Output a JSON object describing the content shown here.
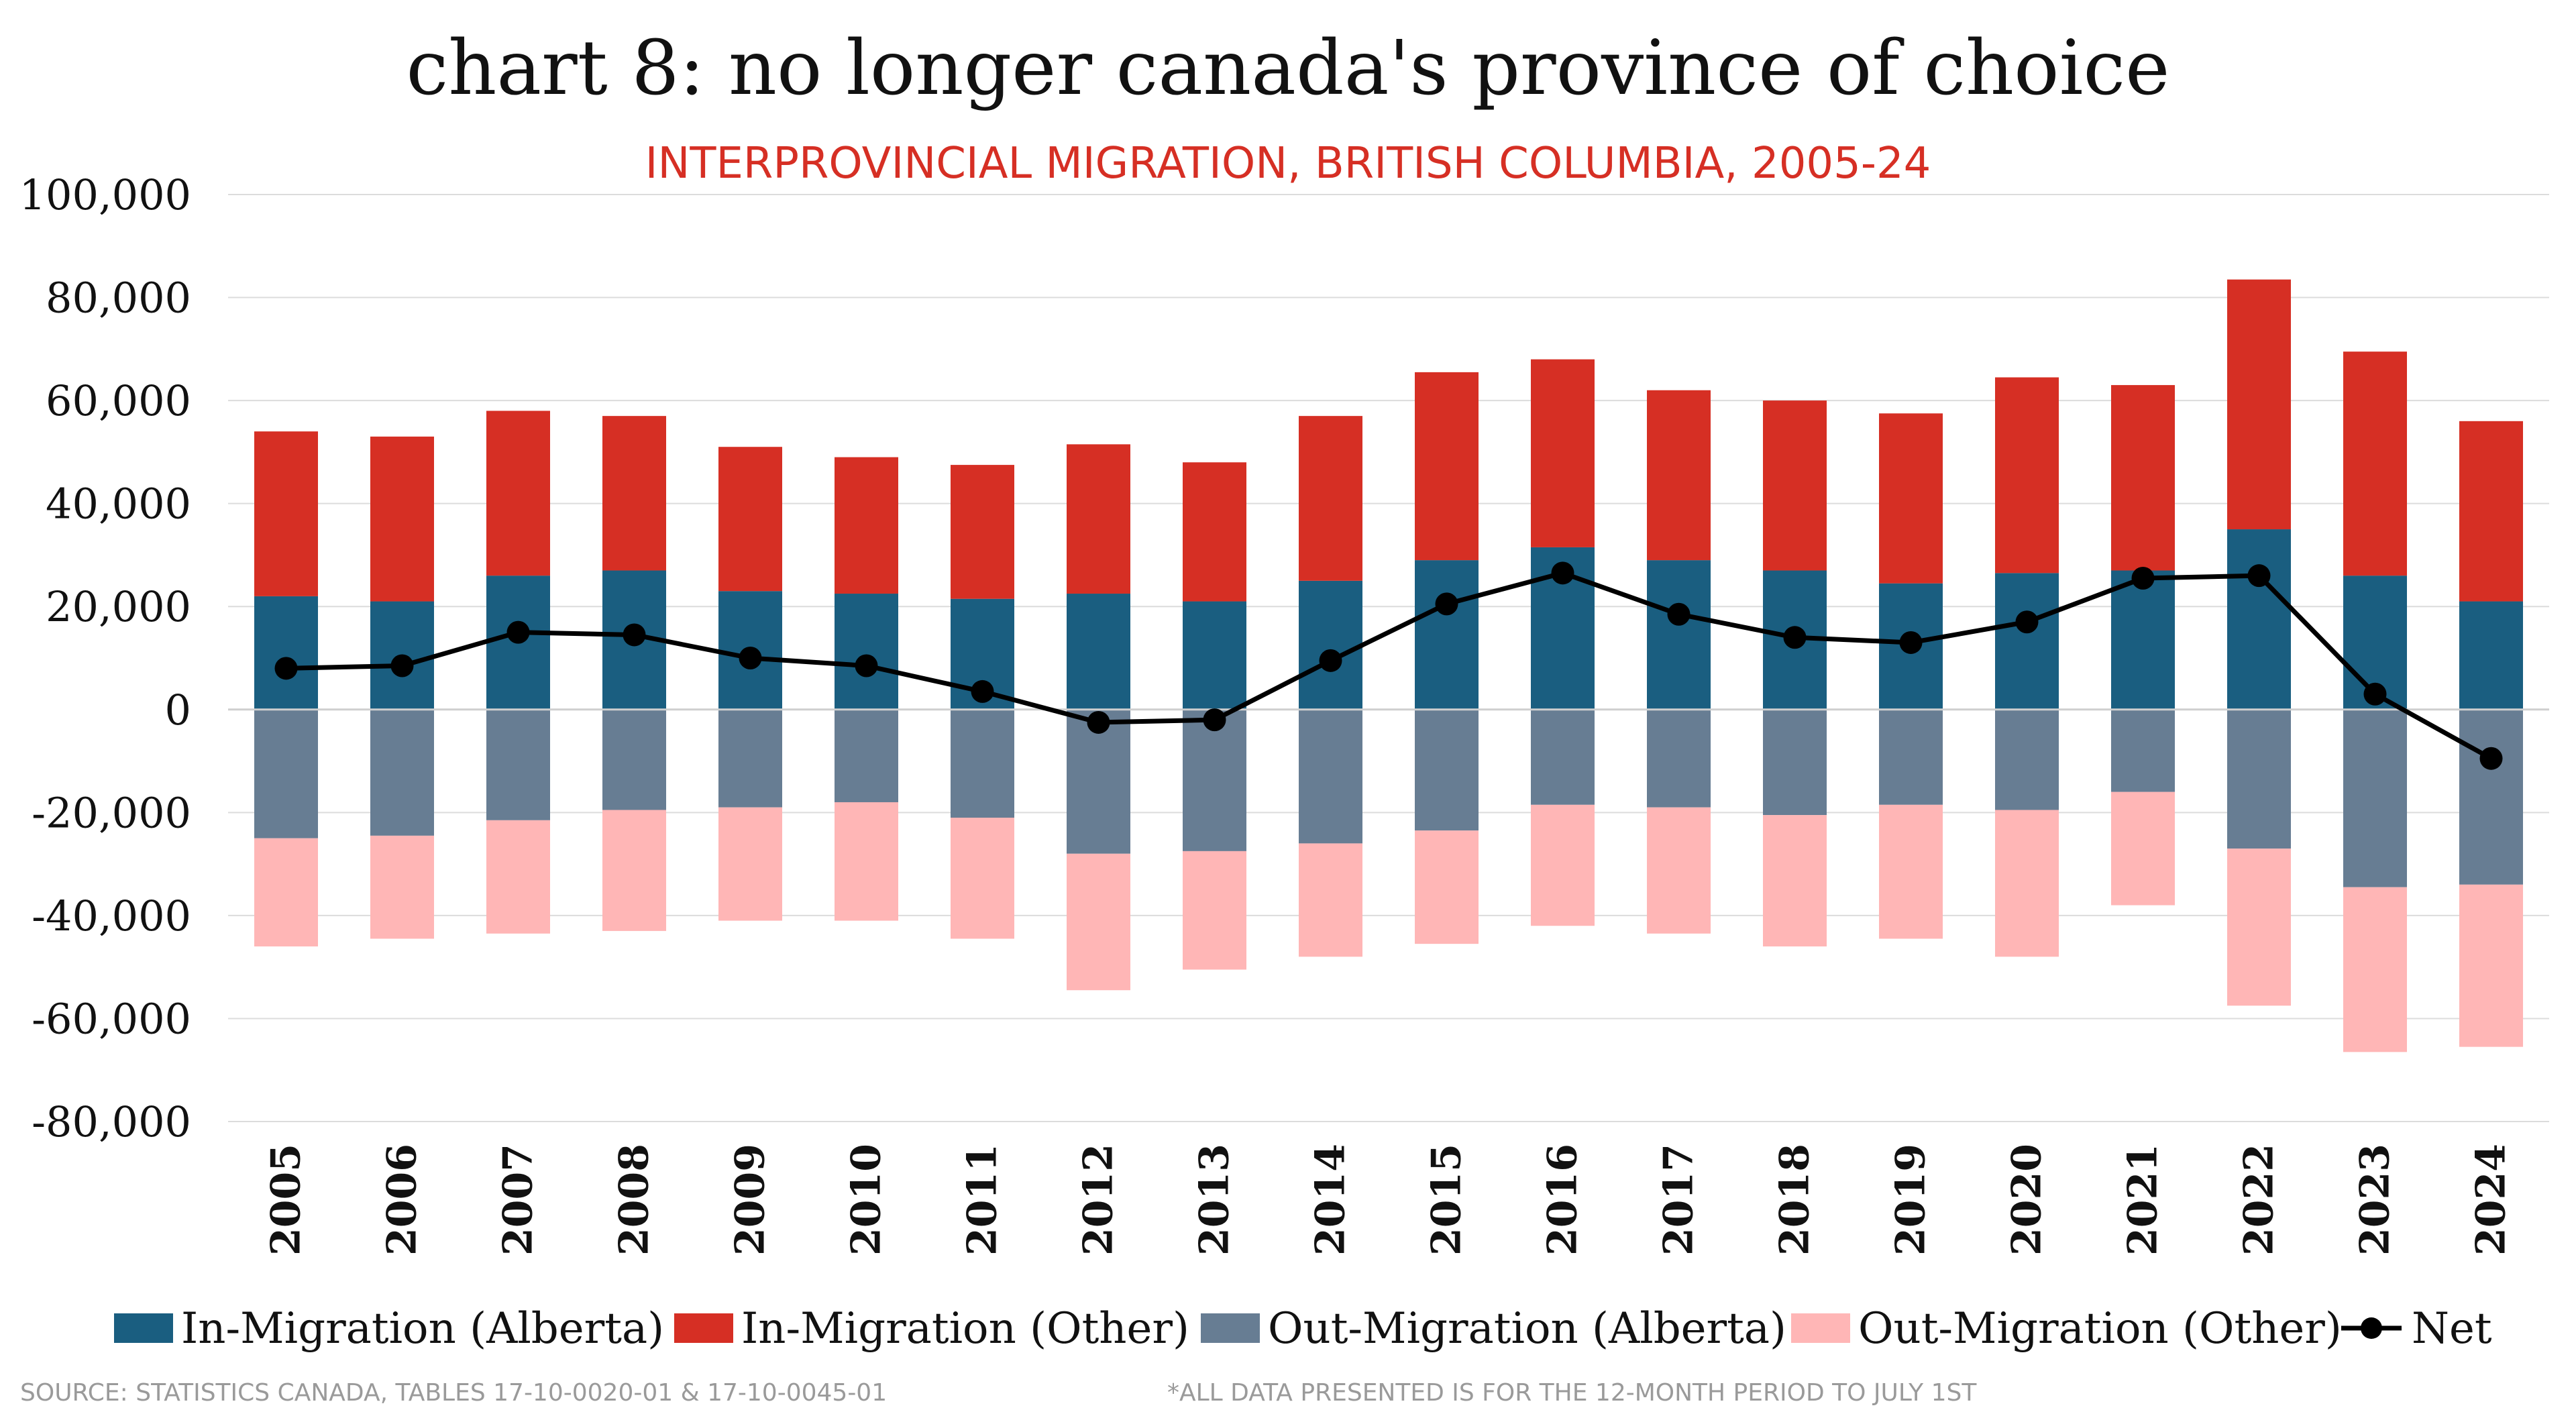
{
  "chart_data": {
    "type": "bar",
    "title": "chart 8: no longer canada's province of choice",
    "subtitle": "INTERPROVINCIAL MIGRATION, BRITISH COLUMBIA, 2005-24",
    "xlabel": "",
    "ylabel": "",
    "ylim": [
      -80000,
      100000
    ],
    "yticks": [
      "100,000",
      "80,000",
      "60,000",
      "40,000",
      "20,000",
      "0",
      "-20,000",
      "-40,000",
      "-60,000",
      "-80,000"
    ],
    "ytick_values": [
      100000,
      80000,
      60000,
      40000,
      20000,
      0,
      -20000,
      -40000,
      -60000,
      -80000
    ],
    "grid": true,
    "legend_position": "bottom",
    "categories": [
      "2005",
      "2006",
      "2007",
      "2008",
      "2009",
      "2010",
      "2011",
      "2012",
      "2013",
      "2014",
      "2015",
      "2016",
      "2017",
      "2018",
      "2019",
      "2020",
      "2021",
      "2022",
      "2023",
      "2024"
    ],
    "series": [
      {
        "name": "In-Migration (Alberta)",
        "type": "bar",
        "stack": "in",
        "color": "#1a5e80",
        "values": [
          22000,
          21000,
          26000,
          27000,
          23000,
          22500,
          21500,
          22500,
          21000,
          25000,
          29000,
          31500,
          29000,
          27000,
          24500,
          26500,
          27000,
          35000,
          26000,
          21000
        ]
      },
      {
        "name": "In-Migration (Other)",
        "type": "bar",
        "stack": "in",
        "color": "#d62f24",
        "values": [
          32000,
          32000,
          32000,
          30000,
          28000,
          26500,
          26000,
          29000,
          27000,
          32000,
          36500,
          36500,
          33000,
          33000,
          33000,
          38000,
          36000,
          48500,
          43500,
          35000
        ]
      },
      {
        "name": "Out-Migration (Alberta)",
        "type": "bar",
        "stack": "out",
        "color": "#677d93",
        "values": [
          -25000,
          -24500,
          -21500,
          -19500,
          -19000,
          -18000,
          -21000,
          -28000,
          -27500,
          -26000,
          -23500,
          -18500,
          -19000,
          -20500,
          -18500,
          -19500,
          -16000,
          -27000,
          -34500,
          -34000
        ]
      },
      {
        "name": "Out-Migration (Other)",
        "type": "bar",
        "stack": "out",
        "color": "#ffb6b6",
        "values": [
          -21000,
          -20000,
          -22000,
          -23500,
          -22000,
          -23000,
          -23500,
          -26500,
          -23000,
          -22000,
          -22000,
          -23500,
          -24500,
          -25500,
          -26000,
          -28500,
          -22000,
          -30500,
          -32000,
          -31500
        ]
      },
      {
        "name": "Net",
        "type": "line",
        "color": "#000000",
        "values": [
          8000,
          8500,
          15000,
          14500,
          10000,
          8500,
          3500,
          -2500,
          -2000,
          9500,
          20500,
          26500,
          18500,
          14000,
          13000,
          17000,
          25500,
          26000,
          3000,
          -9500
        ]
      }
    ],
    "source_note": "SOURCE: STATISTICS CANADA, TABLES 17-10-0020-01 & 17-10-0045-01",
    "period_note": "*ALL DATA PRESENTED IS FOR THE 12-MONTH PERIOD TO JULY 1ST"
  }
}
